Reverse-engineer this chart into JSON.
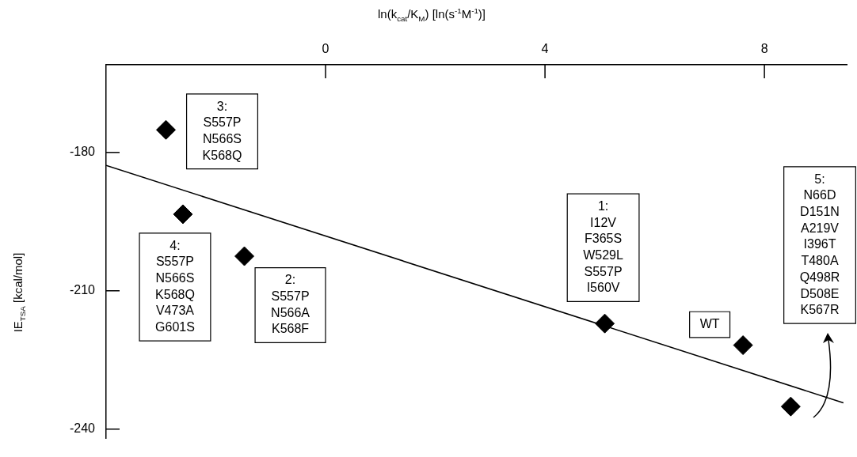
{
  "chart_data": {
    "type": "scatter",
    "xlabel": "ln(k$_{cat}$/K$_{M}$) [ln(s$^{-1}$M$^{-1}$)]",
    "ylabel": "IE$_{TSA}$ [kcal/mol]",
    "series": [
      {
        "type": "scatter",
        "color": "#000000",
        "marker": "diamond",
        "x": [
          -2.91,
          -2.6,
          -1.48,
          5.09,
          7.61,
          8.48
        ],
        "values": [
          -175.1,
          -193.4,
          -202.5,
          -217.1,
          -221.8,
          -235.1
        ]
      },
      {
        "type": "line",
        "color": "#000000",
        "marker": "none",
        "x": [
          -4,
          9.44
        ],
        "values": [
          -182.8,
          -234.3
        ]
      }
    ],
    "xlim": [
      -4,
      9.5
    ],
    "ylim": [
      -242,
      -161
    ],
    "xticks": [
      0,
      4,
      8
    ],
    "yticks": [
      -180,
      -210,
      -240
    ],
    "annotations": [
      {
        "text": "3:\nS557P\nN566S\nK568Q",
        "x": -2.91,
        "y": -175.1
      },
      {
        "text": "4:\nS557P\nN566S\nK568Q\nV473A\nG601S",
        "x": -2.6,
        "y": -193.4
      },
      {
        "text": "2:\nS557P\nN566A\nK568F",
        "x": -1.48,
        "y": -202.5
      },
      {
        "text": "1:\nI12V\nF365S\nW529L\nS557P\nI560V",
        "x": 5.09,
        "y": -217.1
      },
      {
        "text": "WT",
        "x": 7.61,
        "y": -221.8
      },
      "5:\nN66D\nD151N\nA219V\nI396T\nT480A\nQ498R\nD508E\nK567R"
    ]
  }
}
